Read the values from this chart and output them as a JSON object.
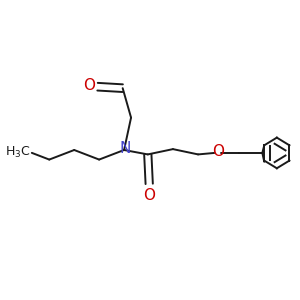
{
  "bg_color": "#ffffff",
  "bond_color": "#1a1a1a",
  "oxygen_color": "#cc0000",
  "nitrogen_color": "#4444cc",
  "line_width": 1.4,
  "font_size": 10,
  "fig_bg": "#ffffff",
  "xlim": [
    0,
    10
  ],
  "ylim": [
    0,
    10
  ]
}
